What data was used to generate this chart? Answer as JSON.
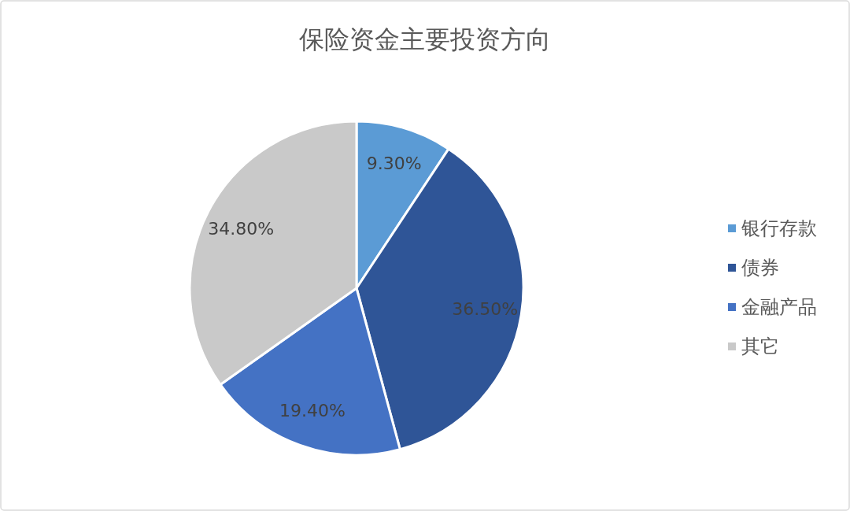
{
  "chart_data": {
    "type": "pie",
    "title": "保险资金主要投资方向",
    "categories": [
      "银行存款",
      "债券",
      "金融产品",
      "其它"
    ],
    "values": [
      9.3,
      36.5,
      19.4,
      34.8
    ],
    "colors": [
      "#5b9bd5",
      "#2f5597",
      "#4472c4",
      "#c9c9c9"
    ],
    "value_labels": [
      "9.30%",
      "36.50%",
      "19.40%",
      "34.80%"
    ],
    "legend": "right"
  }
}
